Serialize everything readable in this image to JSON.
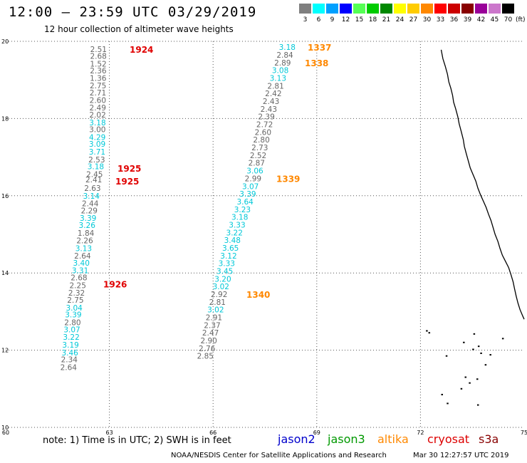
{
  "header": {
    "title": "12:00 – 23:59 UTC 03/29/2019",
    "subtitle": "12 hour collection of altimeter wave heights"
  },
  "color_scale": {
    "unit": "(ft)",
    "bins": [
      {
        "label": "3",
        "color": "#7f7f7f"
      },
      {
        "label": "6",
        "color": "#00ffff"
      },
      {
        "label": "9",
        "color": "#00a0ff"
      },
      {
        "label": "12",
        "color": "#0000ff"
      },
      {
        "label": "15",
        "color": "#55ff55"
      },
      {
        "label": "18",
        "color": "#00cc00"
      },
      {
        "label": "21",
        "color": "#008800"
      },
      {
        "label": "24",
        "color": "#ffff00"
      },
      {
        "label": "27",
        "color": "#ffcc00"
      },
      {
        "label": "30",
        "color": "#ff8800"
      },
      {
        "label": "33",
        "color": "#ff0000"
      },
      {
        "label": "36",
        "color": "#cc0000"
      },
      {
        "label": "39",
        "color": "#880000"
      },
      {
        "label": "42",
        "color": "#990099"
      },
      {
        "label": "45",
        "color": "#cc77cc"
      },
      {
        "label": "70",
        "color": "#000000"
      }
    ]
  },
  "colors": {
    "gray": "#666666",
    "cyan": "#00c8d8",
    "red": "#e00000",
    "orange": "#ff8800",
    "grid": "#808080"
  },
  "axes": {
    "lon_ticks": [
      60,
      63,
      66,
      69,
      72,
      75
    ],
    "lat_ticks": [
      10,
      12,
      14,
      16,
      18,
      20
    ],
    "lon_range": [
      60,
      75
    ],
    "lat_range": [
      10,
      20
    ]
  },
  "tracks": [
    {
      "values": [
        {
          "v": "2.51",
          "c": "gray",
          "lat": 19.8
        },
        {
          "v": "2.68",
          "c": "gray",
          "lat": 19.62
        },
        {
          "v": "1.52",
          "c": "gray",
          "lat": 19.42
        },
        {
          "v": "2.36",
          "c": "gray",
          "lat": 19.24
        },
        {
          "v": "1.36",
          "c": "gray",
          "lat": 19.05
        },
        {
          "v": "2.75",
          "c": "gray",
          "lat": 18.86
        },
        {
          "v": "2.71",
          "c": "gray",
          "lat": 18.67
        },
        {
          "v": "2.60",
          "c": "gray",
          "lat": 18.48
        },
        {
          "v": "2.49",
          "c": "gray",
          "lat": 18.28
        },
        {
          "v": "2.02",
          "c": "gray",
          "lat": 18.1
        },
        {
          "v": "3.18",
          "c": "cyan",
          "lat": 17.9
        },
        {
          "v": "3.00",
          "c": "gray",
          "lat": 17.72
        },
        {
          "v": "4.29",
          "c": "cyan",
          "lat": 17.52
        },
        {
          "v": "3.09",
          "c": "cyan",
          "lat": 17.34
        },
        {
          "v": "3.71",
          "c": "cyan",
          "lat": 17.14
        },
        {
          "v": "2.53",
          "c": "gray",
          "lat": 16.94
        },
        {
          "v": "3.18",
          "c": "cyan",
          "lat": 16.76
        },
        {
          "v": "2.45",
          "c": "gray",
          "lat": 16.56
        },
        {
          "v": "2.41",
          "c": "gray",
          "lat": 16.42
        },
        {
          "v": "2.63",
          "c": "gray",
          "lat": 16.2
        },
        {
          "v": "3.14",
          "c": "cyan",
          "lat": 16.0
        },
        {
          "v": "2.44",
          "c": "gray",
          "lat": 15.8
        },
        {
          "v": "2.29",
          "c": "gray",
          "lat": 15.62
        },
        {
          "v": "3.39",
          "c": "cyan",
          "lat": 15.42
        },
        {
          "v": "3.26",
          "c": "cyan",
          "lat": 15.24
        },
        {
          "v": "1.84",
          "c": "gray",
          "lat": 15.04
        },
        {
          "v": "2.26",
          "c": "gray",
          "lat": 14.84
        },
        {
          "v": "3.13",
          "c": "cyan",
          "lat": 14.64
        },
        {
          "v": "2.64",
          "c": "gray",
          "lat": 14.45
        },
        {
          "v": "3.40",
          "c": "cyan",
          "lat": 14.26
        },
        {
          "v": "3.31",
          "c": "cyan",
          "lat": 14.07
        },
        {
          "v": "2.68",
          "c": "gray",
          "lat": 13.88
        },
        {
          "v": "2.25",
          "c": "gray",
          "lat": 13.68
        },
        {
          "v": "2.32",
          "c": "gray",
          "lat": 13.49
        },
        {
          "v": "2.75",
          "c": "gray",
          "lat": 13.3
        },
        {
          "v": "3.04",
          "c": "cyan",
          "lat": 13.1
        },
        {
          "v": "3.39",
          "c": "cyan",
          "lat": 12.92
        },
        {
          "v": "2.80",
          "c": "gray",
          "lat": 12.72
        },
        {
          "v": "3.07",
          "c": "cyan",
          "lat": 12.54
        },
        {
          "v": "3.22",
          "c": "cyan",
          "lat": 12.34
        },
        {
          "v": "3.19",
          "c": "cyan",
          "lat": 12.14
        },
        {
          "v": "3.46",
          "c": "cyan",
          "lat": 11.94
        },
        {
          "v": "2.34",
          "c": "gray",
          "lat": 11.76
        },
        {
          "v": "2.64",
          "c": "gray",
          "lat": 11.56
        }
      ],
      "times": [
        {
          "t": "1924",
          "c": "red",
          "lat": 19.8
        },
        {
          "t": "1925",
          "c": "red",
          "lat": 16.72
        },
        {
          "t": "1925",
          "c": "red",
          "lat": 16.38
        },
        {
          "t": "1926",
          "c": "red",
          "lat": 13.72
        }
      ]
    },
    {
      "values": [
        {
          "v": "3.18",
          "c": "cyan",
          "lat": 19.85
        },
        {
          "v": "2.84",
          "c": "gray",
          "lat": 19.65
        },
        {
          "v": "2.89",
          "c": "gray",
          "lat": 19.45
        },
        {
          "v": "3.08",
          "c": "cyan",
          "lat": 19.25
        },
        {
          "v": "3.13",
          "c": "cyan",
          "lat": 19.05
        },
        {
          "v": "2.81",
          "c": "gray",
          "lat": 18.85
        },
        {
          "v": "2.42",
          "c": "gray",
          "lat": 18.65
        },
        {
          "v": "2.43",
          "c": "gray",
          "lat": 18.45
        },
        {
          "v": "2.43",
          "c": "gray",
          "lat": 18.25
        },
        {
          "v": "2.39",
          "c": "gray",
          "lat": 18.05
        },
        {
          "v": "2.72",
          "c": "gray",
          "lat": 17.85
        },
        {
          "v": "2.60",
          "c": "gray",
          "lat": 17.65
        },
        {
          "v": "2.80",
          "c": "gray",
          "lat": 17.45
        },
        {
          "v": "2.73",
          "c": "gray",
          "lat": 17.25
        },
        {
          "v": "2.52",
          "c": "gray",
          "lat": 17.05
        },
        {
          "v": "2.87",
          "c": "gray",
          "lat": 16.85
        },
        {
          "v": "3.06",
          "c": "cyan",
          "lat": 16.65
        },
        {
          "v": "2.99",
          "c": "gray",
          "lat": 16.45
        },
        {
          "v": "3.07",
          "c": "cyan",
          "lat": 16.25
        },
        {
          "v": "3.39",
          "c": "cyan",
          "lat": 16.05
        },
        {
          "v": "3.64",
          "c": "cyan",
          "lat": 15.85
        },
        {
          "v": "3.23",
          "c": "cyan",
          "lat": 15.65
        },
        {
          "v": "3.18",
          "c": "cyan",
          "lat": 15.45
        },
        {
          "v": "3.33",
          "c": "cyan",
          "lat": 15.25
        },
        {
          "v": "3.22",
          "c": "cyan",
          "lat": 15.05
        },
        {
          "v": "3.48",
          "c": "cyan",
          "lat": 14.85
        },
        {
          "v": "3.65",
          "c": "cyan",
          "lat": 14.65
        },
        {
          "v": "3.12",
          "c": "cyan",
          "lat": 14.45
        },
        {
          "v": "3.33",
          "c": "cyan",
          "lat": 14.25
        },
        {
          "v": "3.45",
          "c": "cyan",
          "lat": 14.05
        },
        {
          "v": "3.20",
          "c": "cyan",
          "lat": 13.85
        },
        {
          "v": "3.02",
          "c": "cyan",
          "lat": 13.65
        },
        {
          "v": "2.92",
          "c": "gray",
          "lat": 13.45
        },
        {
          "v": "2.81",
          "c": "gray",
          "lat": 13.25
        },
        {
          "v": "3.02",
          "c": "cyan",
          "lat": 13.05
        },
        {
          "v": "2.91",
          "c": "gray",
          "lat": 12.85
        },
        {
          "v": "2.37",
          "c": "gray",
          "lat": 12.65
        },
        {
          "v": "2.47",
          "c": "gray",
          "lat": 12.45
        },
        {
          "v": "2.90",
          "c": "gray",
          "lat": 12.25
        },
        {
          "v": "2.76",
          "c": "gray",
          "lat": 12.05
        },
        {
          "v": "2.85",
          "c": "gray",
          "lat": 11.85
        }
      ],
      "times": [
        {
          "t": "1337",
          "c": "orange",
          "lat": 19.85
        },
        {
          "t": "1338",
          "c": "orange",
          "lat": 19.45
        },
        {
          "t": "1339",
          "c": "orange",
          "lat": 16.45
        },
        {
          "t": "1340",
          "c": "orange",
          "lat": 13.45
        }
      ]
    }
  ],
  "coastline": {
    "mainland_lonlat": [
      [
        72.6,
        19.78
      ],
      [
        72.65,
        19.55
      ],
      [
        72.72,
        19.35
      ],
      [
        72.78,
        19.15
      ],
      [
        72.82,
        18.95
      ],
      [
        72.88,
        18.78
      ],
      [
        72.93,
        18.6
      ],
      [
        72.96,
        18.42
      ],
      [
        73.02,
        18.25
      ],
      [
        73.08,
        18.05
      ],
      [
        73.12,
        17.86
      ],
      [
        73.18,
        17.66
      ],
      [
        73.24,
        17.45
      ],
      [
        73.27,
        17.28
      ],
      [
        73.33,
        17.08
      ],
      [
        73.39,
        16.88
      ],
      [
        73.44,
        16.72
      ],
      [
        73.52,
        16.55
      ],
      [
        73.6,
        16.38
      ],
      [
        73.66,
        16.2
      ],
      [
        73.74,
        16.02
      ],
      [
        73.82,
        15.86
      ],
      [
        73.9,
        15.7
      ],
      [
        73.97,
        15.52
      ],
      [
        74.04,
        15.36
      ],
      [
        74.1,
        15.18
      ],
      [
        74.16,
        15.0
      ],
      [
        74.24,
        14.82
      ],
      [
        74.3,
        14.64
      ],
      [
        74.37,
        14.46
      ],
      [
        74.46,
        14.3
      ],
      [
        74.55,
        14.14
      ],
      [
        74.62,
        13.95
      ],
      [
        74.68,
        13.77
      ],
      [
        74.72,
        13.6
      ],
      [
        74.77,
        13.4
      ],
      [
        74.82,
        13.22
      ],
      [
        74.88,
        13.05
      ],
      [
        74.95,
        12.9
      ],
      [
        75.0,
        12.8
      ]
    ],
    "islands_lonlat": [
      [
        73.55,
        12.42
      ],
      [
        74.38,
        12.3
      ],
      [
        73.68,
        12.1
      ],
      [
        73.52,
        12.02
      ],
      [
        74.02,
        11.88
      ],
      [
        73.88,
        11.62
      ],
      [
        73.3,
        11.3
      ],
      [
        73.64,
        11.25
      ],
      [
        73.42,
        11.15
      ],
      [
        73.18,
        11.0
      ],
      [
        72.78,
        10.62
      ],
      [
        72.62,
        10.85
      ],
      [
        73.66,
        10.58
      ],
      [
        72.75,
        11.85
      ],
      [
        72.25,
        12.45
      ],
      [
        72.18,
        12.5
      ],
      [
        73.25,
        12.2
      ],
      [
        73.75,
        11.92
      ]
    ]
  },
  "note": "note: 1) Time is in UTC; 2) SWH is in feet",
  "satellites": [
    {
      "name": "jason2",
      "color": "#0000cc"
    },
    {
      "name": "jason3",
      "color": "#009900"
    },
    {
      "name": "altika",
      "color": "#ff8800"
    },
    {
      "name": "cryosat",
      "color": "#dd0000"
    },
    {
      "name": "s3a",
      "color": "#880000"
    }
  ],
  "footer": {
    "credit": "NOAA/NESDIS Center for Satellite Applications and Research",
    "timestamp": "Mar 30 12:27:57 UTC 2019"
  }
}
